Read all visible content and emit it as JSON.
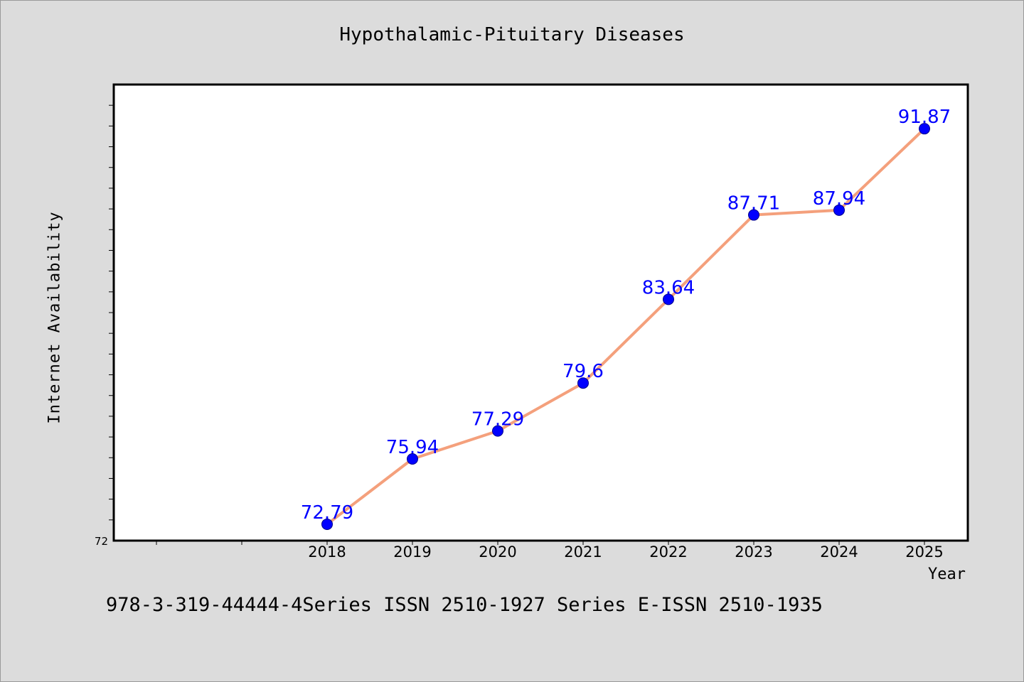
{
  "chart_data": {
    "type": "line",
    "title": "Hypothalamic-Pituitary Diseases",
    "xlabel": "Year",
    "ylabel": "Internet Availability",
    "categories": [
      "2018",
      "2019",
      "2020",
      "2021",
      "2022",
      "2023",
      "2024",
      "2025"
    ],
    "values": [
      72.79,
      75.94,
      77.29,
      79.6,
      83.64,
      87.71,
      87.94,
      91.87
    ],
    "ylim": [
      72,
      94
    ],
    "y_tick_label": "72",
    "grid": false,
    "line_color": "#f4a07c",
    "marker_color": "#0000ff",
    "label_color": "#0000ff"
  },
  "footer_text": "978-3-319-44444-4Series ISSN 2510-1927 Series E-ISSN 2510-1935"
}
